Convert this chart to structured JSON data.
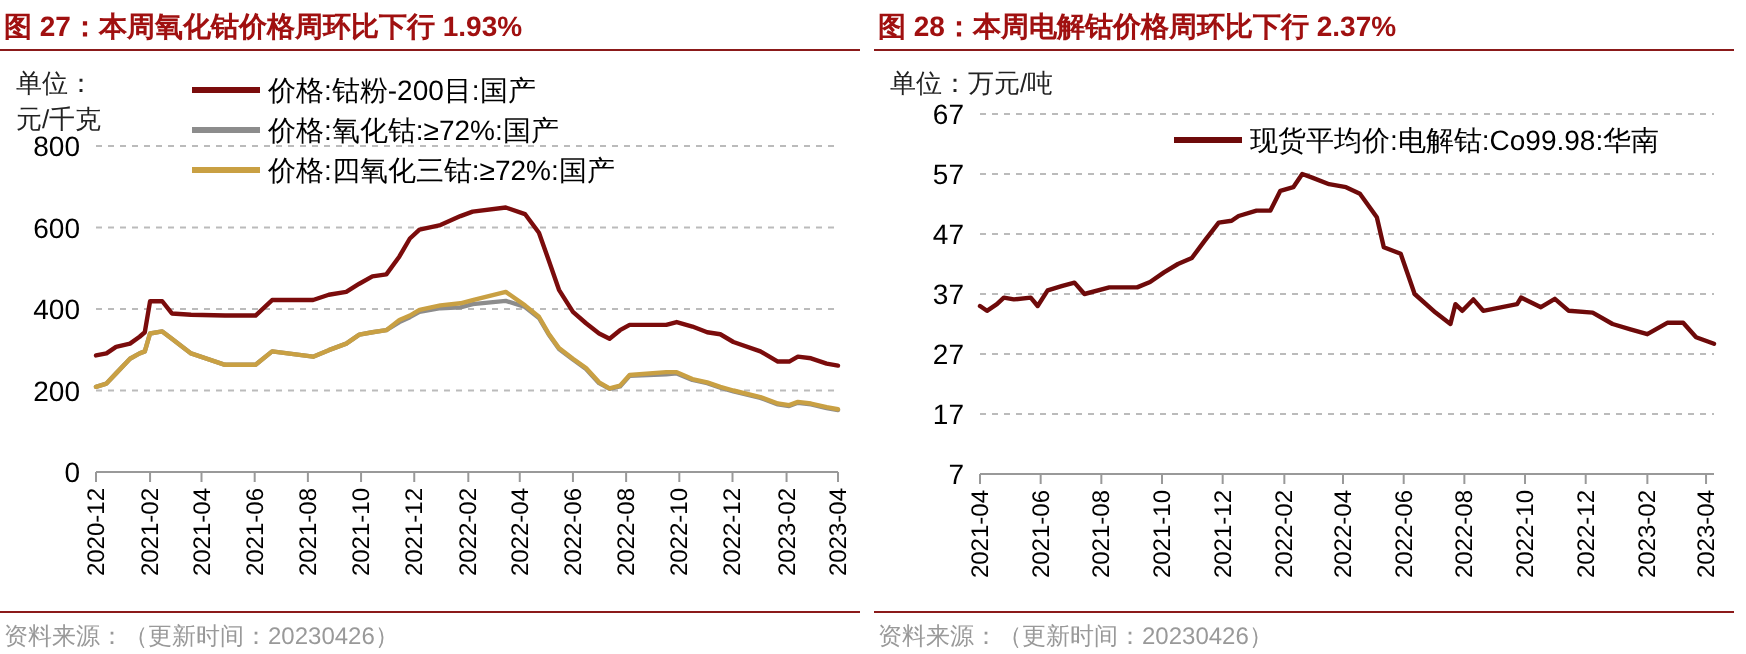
{
  "chart_data": [
    {
      "type": "line",
      "title": "图 27：本周氧化钴价格周环比下行 1.93%",
      "ylabel": "单位：元/千克",
      "annotations": [
        "资料来源：（更新时间：20230426）"
      ],
      "grid": "y",
      "legend": "top",
      "line_style": "solid",
      "x": [
        "2020-12-01",
        "2020-12-13",
        "2020-12-24",
        "2021-01-09",
        "2021-01-20",
        "2021-01-26",
        "2021-02-01",
        "2021-02-15",
        "2021-02-26",
        "2021-03-20",
        "2021-04-28",
        "2021-06-02",
        "2021-06-21",
        "2021-08-07",
        "2021-08-25",
        "2021-09-14",
        "2021-09-29",
        "2021-10-14",
        "2021-10-30",
        "2021-11-14",
        "2021-11-26",
        "2021-12-07",
        "2021-12-31",
        "2022-01-23",
        "2022-02-06",
        "2022-03-16",
        "2022-04-07",
        "2022-04-23",
        "2022-05-04",
        "2022-05-16",
        "2022-06-01",
        "2022-06-16",
        "2022-07-01",
        "2022-07-13",
        "2022-07-25",
        "2022-08-05",
        "2022-09-16",
        "2022-09-28",
        "2022-10-16",
        "2022-11-02",
        "2022-11-17",
        "2022-12-02",
        "2023-01-02",
        "2023-01-22",
        "2023-02-04",
        "2023-02-14",
        "2023-03-01",
        "2023-03-19",
        "2023-04-01"
      ],
      "series": [
        {
          "name": "价格:钴粉-200目:国产",
          "color": "#7b0c0c",
          "values": [
            286,
            291,
            307,
            315,
            332,
            343,
            419,
            419,
            389,
            386,
            384,
            384,
            422,
            422,
            435,
            442,
            462,
            480,
            485,
            529,
            573,
            595,
            606,
            628,
            639,
            649,
            633,
            587,
            521,
            447,
            393,
            365,
            340,
            327,
            348,
            361,
            361,
            368,
            357,
            343,
            338,
            319,
            296,
            271,
            271,
            283,
            279,
            266,
            261
          ]
        },
        {
          "name": "价格:氧化钴:≥72%:国产",
          "color": "#8c8c8c",
          "values": [
            209,
            217,
            242,
            278,
            291,
            296,
            340,
            345,
            327,
            291,
            263,
            263,
            296,
            283,
            299,
            315,
            337,
            343,
            348,
            368,
            380,
            393,
            402,
            404,
            412,
            420,
            405,
            378,
            338,
            302,
            276,
            253,
            218,
            204,
            210,
            236,
            240,
            242,
            226,
            218,
            207,
            198,
            182,
            166,
            162,
            170,
            166,
            157,
            152
          ]
        },
        {
          "name": "价格:四氧化三钴:≥72%:国产",
          "color": "#c9a043",
          "values": [
            209,
            217,
            242,
            278,
            291,
            296,
            340,
            345,
            327,
            291,
            263,
            263,
            296,
            283,
            299,
            315,
            337,
            343,
            348,
            373,
            384,
            398,
            409,
            414,
            422,
            442,
            409,
            381,
            340,
            304,
            278,
            255,
            220,
            205,
            212,
            238,
            245,
            245,
            228,
            220,
            209,
            200,
            184,
            168,
            164,
            172,
            168,
            159,
            154
          ]
        }
      ],
      "xlim": [
        "2020-12-01",
        "2023-04-01"
      ],
      "xticks": [
        "2020-12",
        "2021-02",
        "2021-04",
        "2021-06",
        "2021-08",
        "2021-10",
        "2021-12",
        "2022-02",
        "2022-04",
        "2022-06",
        "2022-08",
        "2022-10",
        "2022-12",
        "2023-02",
        "2023-04"
      ],
      "ylim": [
        0,
        800
      ],
      "yticks": [
        0,
        200,
        400,
        600,
        800
      ]
    },
    {
      "type": "line",
      "title": "图 28：本周电解钴价格周环比下行 2.37%",
      "ylabel": "单位：万元/吨",
      "annotations": [
        "资料来源：（更新时间：20230426）"
      ],
      "grid": "y",
      "legend": "top right",
      "line_style": "solid",
      "x": [
        "2021-04-01",
        "2021-04-08",
        "2021-04-18",
        "2021-04-25",
        "2021-05-05",
        "2021-05-22",
        "2021-05-29",
        "2021-06-08",
        "2021-06-22",
        "2021-07-05",
        "2021-07-15",
        "2021-08-09",
        "2021-09-06",
        "2021-09-19",
        "2021-10-03",
        "2021-10-17",
        "2021-10-31",
        "2021-11-13",
        "2021-11-27",
        "2021-12-10",
        "2021-12-17",
        "2022-01-04",
        "2022-01-18",
        "2022-01-28",
        "2022-02-10",
        "2022-02-19",
        "2022-03-01",
        "2022-03-18",
        "2022-04-04",
        "2022-04-18",
        "2022-05-05",
        "2022-05-12",
        "2022-05-29",
        "2022-06-12",
        "2022-07-03",
        "2022-07-18",
        "2022-07-23",
        "2022-07-30",
        "2022-08-10",
        "2022-08-20",
        "2022-09-23",
        "2022-09-27",
        "2022-10-17",
        "2022-10-31",
        "2022-11-14",
        "2022-12-08",
        "2022-12-28",
        "2023-01-15",
        "2023-02-01",
        "2023-02-21",
        "2023-03-09",
        "2023-03-22",
        "2023-04-09"
      ],
      "series": [
        {
          "name": "现货平均价:电解钴:Co99.98:华南",
          "color": "#6e0a0a",
          "values": [
            35.0,
            34.2,
            35.3,
            36.4,
            36.1,
            36.4,
            35.0,
            37.6,
            38.3,
            38.9,
            37.0,
            38.1,
            38.1,
            39.0,
            40.6,
            42.0,
            43.0,
            45.9,
            48.9,
            49.2,
            50.0,
            50.9,
            50.9,
            54.2,
            54.8,
            57.0,
            56.4,
            55.3,
            54.8,
            53.7,
            49.8,
            44.8,
            43.7,
            37.0,
            33.9,
            32.0,
            35.3,
            34.2,
            36.1,
            34.2,
            35.3,
            36.4,
            34.8,
            36.2,
            34.2,
            33.9,
            32.0,
            31.1,
            30.3,
            32.2,
            32.2,
            29.8,
            28.7
          ]
        }
      ],
      "xlim": [
        "2021-04-01",
        "2023-04-09"
      ],
      "xticks": [
        "2021-04",
        "2021-06",
        "2021-08",
        "2021-10",
        "2021-12",
        "2022-02",
        "2022-04",
        "2022-06",
        "2022-08",
        "2022-10",
        "2022-12",
        "2023-02",
        "2023-04"
      ],
      "ylim": [
        7,
        67
      ],
      "yticks": [
        7,
        17,
        27,
        37,
        47,
        57,
        67
      ]
    }
  ]
}
